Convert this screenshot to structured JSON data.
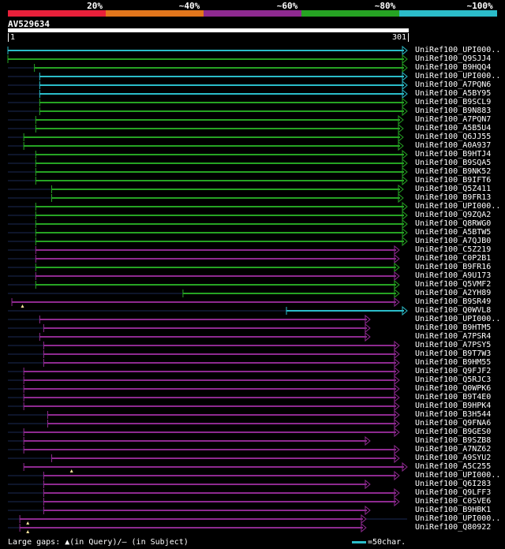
{
  "legend": {
    "labels": [
      "20%",
      "~40%",
      "~60%",
      "~80%",
      "~100%"
    ],
    "colors": [
      "#e8203a",
      "#e2761c",
      "#8e2a90",
      "#26a323",
      "#2bbcc9"
    ]
  },
  "query": {
    "id": "AV529634",
    "start": "1",
    "end": "301"
  },
  "hits": [
    {
      "label": "UniRef100_UPI000..",
      "color": "#2bbcc9",
      "shape": "tri",
      "a": 0,
      "b": 301,
      "dim": []
    },
    {
      "label": "UniRef100_Q9SJJ4",
      "color": "#26a323",
      "shape": "tri",
      "a": 0,
      "b": 301,
      "dim": [
        [
          35,
          65
        ]
      ]
    },
    {
      "label": "UniRef100_B9HQQ4",
      "color": "#26a323",
      "shape": "tri",
      "a": 20,
      "b": 301,
      "dim": [
        [
          0,
          20
        ]
      ]
    },
    {
      "label": "UniRef100_UPI000..",
      "color": "#2bbcc9",
      "shape": "tri",
      "a": 24,
      "b": 301,
      "dim": [
        [
          0,
          24
        ]
      ]
    },
    {
      "label": "UniRef100_A7PQN6",
      "color": "#2bbcc9",
      "shape": "tri",
      "a": 24,
      "b": 301,
      "dim": [
        [
          0,
          24
        ]
      ]
    },
    {
      "label": "UniRef100_A5BY95",
      "color": "#2bbcc9",
      "shape": "tri",
      "a": 24,
      "b": 301,
      "dim": [
        [
          0,
          24
        ]
      ]
    },
    {
      "label": "UniRef100_B9SCL9",
      "color": "#26a323",
      "shape": "tri",
      "a": 24,
      "b": 301,
      "dim": [
        [
          0,
          24
        ]
      ]
    },
    {
      "label": "UniRef100_B9N883",
      "color": "#26a323",
      "shape": "tri",
      "a": 24,
      "b": 301,
      "dim": [
        [
          0,
          24
        ]
      ]
    },
    {
      "label": "UniRef100_A7PQN7",
      "color": "#26a323",
      "shape": "tri",
      "a": 21,
      "b": 298,
      "dim": [
        [
          0,
          21
        ]
      ]
    },
    {
      "label": "UniRef100_A5B5U4",
      "color": "#26a323",
      "shape": "tri",
      "a": 21,
      "b": 298,
      "dim": [
        [
          0,
          21
        ]
      ]
    },
    {
      "label": "UniRef100_Q6JJ55",
      "color": "#26a323",
      "shape": "tri",
      "a": 12,
      "b": 298,
      "dim": [
        [
          0,
          12
        ]
      ]
    },
    {
      "label": "UniRef100_A0A937",
      "color": "#26a323",
      "shape": "tri",
      "a": 12,
      "b": 298,
      "dim": [
        [
          0,
          12
        ],
        [
          45,
          50
        ]
      ]
    },
    {
      "label": "UniRef100_B9HTJ4",
      "color": "#26a323",
      "shape": "tri",
      "a": 21,
      "b": 301,
      "dim": [
        [
          0,
          21
        ],
        [
          54,
          58
        ]
      ]
    },
    {
      "label": "UniRef100_B9SQA5",
      "color": "#26a323",
      "shape": "tri",
      "a": 21,
      "b": 301,
      "dim": [
        [
          0,
          21
        ],
        [
          54,
          58
        ]
      ]
    },
    {
      "label": "UniRef100_B9NK52",
      "color": "#26a323",
      "shape": "tri",
      "a": 21,
      "b": 301,
      "dim": [
        [
          0,
          21
        ],
        [
          54,
          58
        ]
      ]
    },
    {
      "label": "UniRef100_B9IFT6",
      "color": "#26a323",
      "shape": "tri",
      "a": 21,
      "b": 301,
      "dim": [
        [
          0,
          21
        ],
        [
          54,
          58
        ]
      ]
    },
    {
      "label": "UniRef100_Q5Z411",
      "color": "#26a323",
      "shape": "tri",
      "a": 33,
      "b": 298,
      "dim": [
        [
          0,
          33
        ]
      ]
    },
    {
      "label": "UniRef100_B9FR13",
      "color": "#26a323",
      "shape": "tri",
      "a": 33,
      "b": 298,
      "dim": [
        [
          0,
          33
        ]
      ]
    },
    {
      "label": "UniRef100_UPI000..",
      "color": "#26a323",
      "shape": "tri",
      "a": 21,
      "b": 301,
      "dim": [
        [
          0,
          21
        ],
        [
          46,
          52
        ]
      ]
    },
    {
      "label": "UniRef100_Q9ZQA2",
      "color": "#26a323",
      "shape": "tri",
      "a": 21,
      "b": 301,
      "dim": [
        [
          0,
          21
        ],
        [
          46,
          52
        ]
      ]
    },
    {
      "label": "UniRef100_Q8RWG0",
      "color": "#26a323",
      "shape": "tri",
      "a": 21,
      "b": 301,
      "dim": [
        [
          0,
          21
        ],
        [
          46,
          52
        ]
      ]
    },
    {
      "label": "UniRef100_A5BTW5",
      "color": "#26a323",
      "shape": "tri",
      "a": 21,
      "b": 301,
      "dim": [
        [
          0,
          21
        ],
        [
          46,
          52
        ]
      ]
    },
    {
      "label": "UniRef100_A7QJB0",
      "color": "#26a323",
      "shape": "tri",
      "a": 21,
      "b": 301,
      "dim": [
        [
          0,
          21
        ]
      ]
    },
    {
      "label": "UniRef100_C5Z219",
      "color": "#8e2a90",
      "shape": "tri",
      "a": 21,
      "b": 295,
      "dim": [
        [
          0,
          21
        ],
        [
          46,
          52
        ]
      ]
    },
    {
      "label": "UniRef100_C0P2B1",
      "color": "#8e2a90",
      "shape": "tri",
      "a": 21,
      "b": 295,
      "dim": [
        [
          0,
          21
        ],
        [
          46,
          52
        ]
      ]
    },
    {
      "label": "UniRef100_B9FR16",
      "color": "#26a323",
      "shape": "tri",
      "a": 21,
      "b": 295,
      "dim": [
        [
          0,
          21
        ],
        [
          52,
          58
        ]
      ]
    },
    {
      "label": "UniRef100_A9U173",
      "color": "#8e2a90",
      "shape": "tri",
      "a": 21,
      "b": 295,
      "dim": [
        [
          0,
          21
        ],
        [
          52,
          58
        ]
      ]
    },
    {
      "label": "UniRef100_Q5VMF2",
      "color": "#26a323",
      "shape": "tri",
      "a": 21,
      "b": 295,
      "dim": [
        [
          0,
          21
        ],
        [
          52,
          58
        ]
      ]
    },
    {
      "label": "UniRef100_A2YH89",
      "color": "#26a323",
      "shape": "tri",
      "a": 132,
      "b": 295,
      "dim": [
        [
          0,
          132
        ]
      ]
    },
    {
      "label": "UniRef100_B9SR49",
      "color": "#8e2a90",
      "shape": "tri",
      "a": 3,
      "b": 295,
      "dim": [
        [
          40,
          45
        ]
      ],
      "gapmark": 11
    },
    {
      "label": "UniRef100_Q0WVL8",
      "color": "#2bbcc9",
      "shape": "tri",
      "a": 210,
      "b": 301,
      "dim": [
        [
          0,
          210
        ]
      ]
    },
    {
      "label": "UniRef100_UPI000..",
      "color": "#8e2a90",
      "shape": "tri",
      "a": 24,
      "b": 273,
      "dim": [
        [
          0,
          24
        ]
      ]
    },
    {
      "label": "UniRef100_B9HTM5",
      "color": "#8e2a90",
      "shape": "tri",
      "a": 27,
      "b": 273,
      "dim": [
        [
          0,
          27
        ],
        [
          58,
          62
        ],
        [
          80,
          85
        ]
      ]
    },
    {
      "label": "UniRef100_A7PSR4",
      "color": "#8e2a90",
      "shape": "tri",
      "a": 24,
      "b": 273,
      "dim": [
        [
          0,
          24
        ],
        [
          58,
          62
        ]
      ]
    },
    {
      "label": "UniRef100_A7PSY5",
      "color": "#8e2a90",
      "shape": "tri",
      "a": 27,
      "b": 295,
      "dim": [
        [
          0,
          27
        ],
        [
          58,
          62
        ]
      ]
    },
    {
      "label": "UniRef100_B9T7W3",
      "color": "#8e2a90",
      "shape": "tri",
      "a": 27,
      "b": 295,
      "dim": [
        [
          0,
          27
        ],
        [
          58,
          62
        ]
      ]
    },
    {
      "label": "UniRef100_B9HM55",
      "color": "#8e2a90",
      "shape": "tri",
      "a": 27,
      "b": 295,
      "dim": [
        [
          0,
          27
        ],
        [
          58,
          62
        ]
      ]
    },
    {
      "label": "UniRef100_Q9FJF2",
      "color": "#8e2a90",
      "shape": "tri",
      "a": 12,
      "b": 295,
      "dim": [
        [
          0,
          12
        ],
        [
          46,
          52
        ]
      ]
    },
    {
      "label": "UniRef100_Q5RJC3",
      "color": "#8e2a90",
      "shape": "tri",
      "a": 12,
      "b": 295,
      "dim": [
        [
          0,
          12
        ],
        [
          46,
          52
        ]
      ]
    },
    {
      "label": "UniRef100_Q0WPK6",
      "color": "#8e2a90",
      "shape": "tri",
      "a": 12,
      "b": 295,
      "dim": [
        [
          0,
          12
        ],
        [
          46,
          52
        ]
      ]
    },
    {
      "label": "UniRef100_B9T4E0",
      "color": "#8e2a90",
      "shape": "tri",
      "a": 12,
      "b": 295,
      "dim": [
        [
          0,
          12
        ],
        [
          40,
          52
        ]
      ]
    },
    {
      "label": "UniRef100_B9HPK4",
      "color": "#8e2a90",
      "shape": "tri",
      "a": 12,
      "b": 295,
      "dim": [
        [
          0,
          12
        ],
        [
          46,
          52
        ]
      ]
    },
    {
      "label": "UniRef100_B3H544",
      "color": "#8e2a90",
      "shape": "tri",
      "a": 30,
      "b": 295,
      "dim": [
        [
          0,
          30
        ],
        [
          58,
          62
        ]
      ]
    },
    {
      "label": "UniRef100_Q9FNA6",
      "color": "#8e2a90",
      "shape": "tri",
      "a": 30,
      "b": 295,
      "dim": [
        [
          0,
          30
        ],
        [
          58,
          62
        ]
      ]
    },
    {
      "label": "UniRef100_B9GES0",
      "color": "#8e2a90",
      "shape": "tri",
      "a": 12,
      "b": 295,
      "dim": [
        [
          0,
          12
        ],
        [
          46,
          52
        ]
      ]
    },
    {
      "label": "UniRef100_B9SZB8",
      "color": "#8e2a90",
      "shape": "tri",
      "a": 12,
      "b": 273,
      "dim": [
        [
          0,
          12
        ],
        [
          40,
          52
        ]
      ]
    },
    {
      "label": "UniRef100_A7NZ62",
      "color": "#8e2a90",
      "shape": "tri",
      "a": 12,
      "b": 295,
      "dim": [
        [
          0,
          12
        ],
        [
          46,
          52
        ]
      ]
    },
    {
      "label": "UniRef100_A9SYU2",
      "color": "#8e2a90",
      "shape": "tri",
      "a": 33,
      "b": 295,
      "dim": [
        [
          0,
          33
        ],
        [
          60,
          66
        ]
      ]
    },
    {
      "label": "UniRef100_A5C255",
      "color": "#8e2a90",
      "shape": "tri",
      "a": 12,
      "b": 301,
      "dim": [],
      "gapmark": 48
    },
    {
      "label": "UniRef100_UPI000..",
      "color": "#8e2a90",
      "shape": "tri",
      "a": 27,
      "b": 295,
      "dim": [
        [
          0,
          27
        ],
        [
          52,
          58
        ]
      ]
    },
    {
      "label": "UniRef100_Q6I283",
      "color": "#8e2a90",
      "shape": "tri",
      "a": 27,
      "b": 273,
      "dim": [
        [
          0,
          27
        ],
        [
          58,
          62
        ]
      ]
    },
    {
      "label": "UniRef100_Q9LFF3",
      "color": "#8e2a90",
      "shape": "tri",
      "a": 27,
      "b": 295,
      "dim": [
        [
          0,
          27
        ],
        [
          58,
          62
        ]
      ]
    },
    {
      "label": "UniRef100_C0SVE6",
      "color": "#8e2a90",
      "shape": "tri",
      "a": 27,
      "b": 295,
      "dim": [
        [
          0,
          27
        ],
        [
          58,
          62
        ]
      ]
    },
    {
      "label": "UniRef100_B9HBK1",
      "color": "#8e2a90",
      "shape": "tri",
      "a": 27,
      "b": 273,
      "dim": [
        [
          0,
          27
        ],
        [
          58,
          62
        ]
      ]
    },
    {
      "label": "UniRef100_UPI000..",
      "color": "#8e2a90",
      "shape": "tri",
      "a": 9,
      "b": 270,
      "dim": [
        [
          0,
          9
        ],
        [
          45,
          50
        ],
        [
          270,
          301
        ]
      ],
      "gapmark": 15
    },
    {
      "label": "UniRef100_Q80922",
      "color": "#8e2a90",
      "shape": "tri",
      "a": 9,
      "b": 270,
      "dim": [
        [
          0,
          9
        ],
        [
          45,
          50
        ]
      ],
      "gapmark": 15
    }
  ],
  "footer": {
    "text": "Large gaps: ▲(in Query)/— (in Subject)"
  },
  "scale": {
    "color": "#2bbcc9",
    "label": "=50char."
  }
}
